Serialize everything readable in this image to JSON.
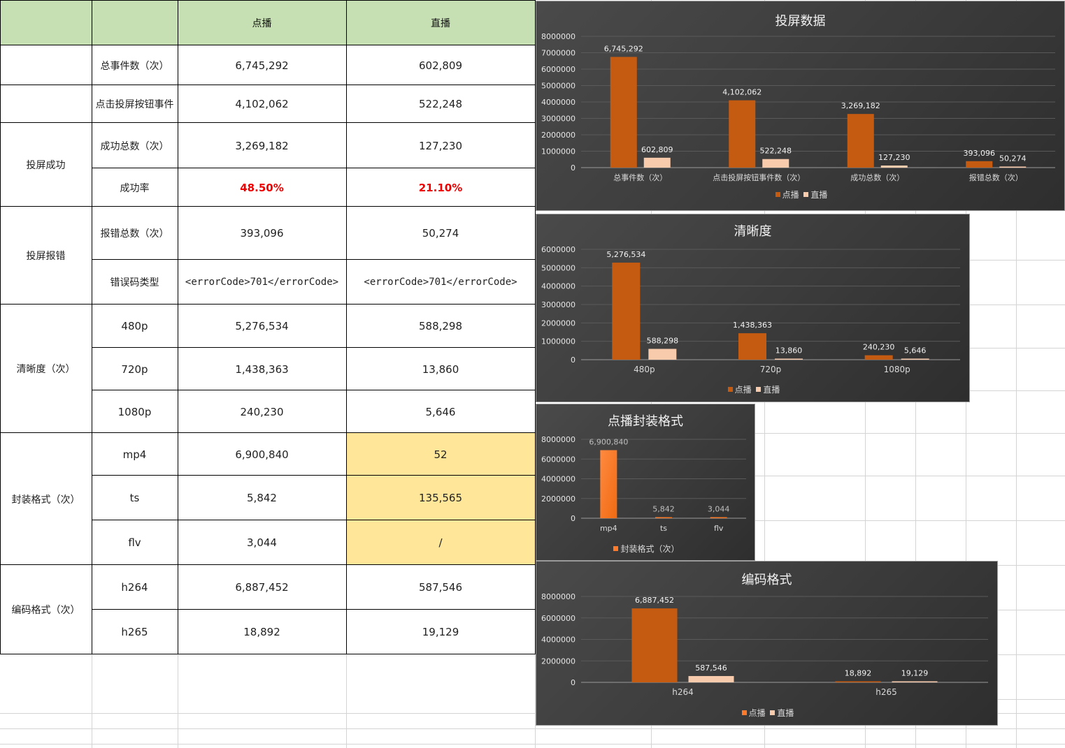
{
  "table": {
    "header": {
      "blank1": "",
      "blank2": "",
      "col_vod": "点播",
      "col_live": "直播"
    },
    "rows": [
      {
        "group": "",
        "item": "总事件数（次）",
        "vod": "6,745,292",
        "live": "602,809"
      },
      {
        "group": "",
        "item": "点击投屏按钮事件",
        "vod": "4,102,062",
        "live": "522,248"
      },
      {
        "item": "成功总数（次）",
        "vod": "3,269,182",
        "live": "127,230"
      },
      {
        "item": "成功率",
        "vod": "48.50%",
        "live": "21.10%"
      },
      {
        "item": "报错总数（次）",
        "vod": "393,096",
        "live": "50,274"
      },
      {
        "item": "错误码类型",
        "vod": "<errorCode>701</errorCode>",
        "live": "<errorCode>701</errorCode>"
      },
      {
        "item": "480p",
        "vod": "5,276,534",
        "live": "588,298"
      },
      {
        "item": "720p",
        "vod": "1,438,363",
        "live": "13,860"
      },
      {
        "item": "1080p",
        "vod": "240,230",
        "live": "5,646"
      },
      {
        "item": "mp4",
        "vod": "6,900,840",
        "live": "52"
      },
      {
        "item": "ts",
        "vod": "5,842",
        "live": "135,565"
      },
      {
        "item": "flv",
        "vod": "3,044",
        "live": "/"
      },
      {
        "item": "h264",
        "vod": "6,887,452",
        "live": "587,546"
      },
      {
        "item": "h265",
        "vod": "18,892",
        "live": "19,129"
      }
    ],
    "groups": {
      "success": "投屏成功",
      "error": "投屏报错",
      "resolution": "清晰度（次）",
      "container": "封装格式（次）",
      "codec": "编码格式（次）"
    }
  },
  "colors": {
    "header_green": "#c6e0b4",
    "highlight_yellow": "#ffe699",
    "rate_red": "#ee0000",
    "vod_bar": "#c55a11",
    "live_bar": "#f8cbad",
    "container_bar": "#ff7a2a"
  },
  "chart_data": [
    {
      "type": "bar",
      "title": "投屏数据",
      "categories": [
        "总事件数（次）",
        "点击投屏按钮事件数（次）",
        "成功总数（次）",
        "报错总数（次）"
      ],
      "series": [
        {
          "name": "点播",
          "values": [
            6745292,
            4102062,
            3269182,
            393096
          ],
          "labels": [
            "6,745,292",
            "4,102,062",
            "3,269,182",
            "393,096"
          ]
        },
        {
          "name": "直播",
          "values": [
            602809,
            522248,
            127230,
            50274
          ],
          "labels": [
            "602,809",
            "522,248",
            "127,230",
            "50,274"
          ]
        }
      ],
      "yticks": [
        "0",
        "1000000",
        "2000000",
        "3000000",
        "4000000",
        "5000000",
        "6000000",
        "7000000",
        "8000000"
      ],
      "ylim": [
        0,
        8000000
      ],
      "legend": "bottom"
    },
    {
      "type": "bar",
      "title": "清晰度",
      "categories": [
        "480p",
        "720p",
        "1080p"
      ],
      "series": [
        {
          "name": "点播",
          "values": [
            5276534,
            1438363,
            240230
          ],
          "labels": [
            "5,276,534",
            "1,438,363",
            "240,230"
          ]
        },
        {
          "name": "直播",
          "values": [
            588298,
            13860,
            5646
          ],
          "labels": [
            "588,298",
            "13,860",
            "5,646"
          ]
        }
      ],
      "yticks": [
        "0",
        "1000000",
        "2000000",
        "3000000",
        "4000000",
        "5000000",
        "6000000"
      ],
      "ylim": [
        0,
        6000000
      ],
      "legend": "bottom"
    },
    {
      "type": "bar",
      "title": "点播封装格式",
      "categories": [
        "mp4",
        "ts",
        "flv"
      ],
      "series": [
        {
          "name": "封装格式（次）",
          "values": [
            6900840,
            5842,
            3044
          ],
          "labels": [
            "6,900,840",
            "5,842",
            "3,044"
          ]
        }
      ],
      "yticks": [
        "0",
        "2000000",
        "4000000",
        "6000000",
        "8000000"
      ],
      "ylim": [
        0,
        8000000
      ],
      "legend": "bottom"
    },
    {
      "type": "bar",
      "title": "编码格式",
      "categories": [
        "h264",
        "h265"
      ],
      "series": [
        {
          "name": "点播",
          "values": [
            6887452,
            18892
          ],
          "labels": [
            "6,887,452",
            "18,892"
          ]
        },
        {
          "name": "直播",
          "values": [
            587546,
            19129
          ],
          "labels": [
            "587,546",
            "19,129"
          ]
        }
      ],
      "yticks": [
        "0",
        "2000000",
        "4000000",
        "6000000",
        "8000000"
      ],
      "ylim": [
        0,
        8000000
      ],
      "legend": "bottom"
    }
  ]
}
